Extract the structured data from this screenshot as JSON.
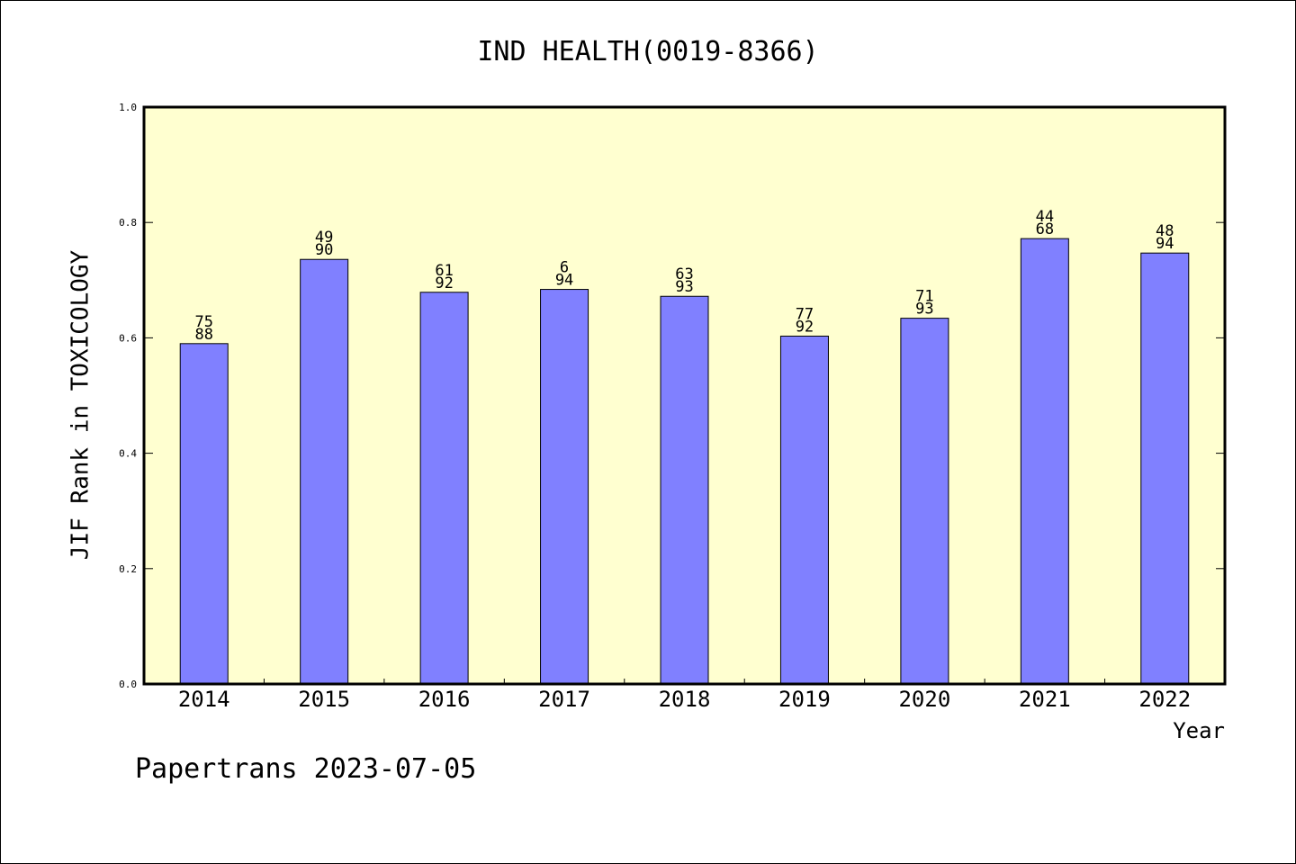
{
  "chart_data": {
    "type": "bar",
    "title": "IND HEALTH(0019-8366)",
    "xlabel": "Year",
    "ylabel": "JIF Rank in TOXICOLOGY",
    "ylim": [
      0,
      1.0
    ],
    "yticks": [
      "0.0",
      "0.2",
      "0.4",
      "0.6",
      "0.8",
      "1.0"
    ],
    "categories": [
      "2014",
      "2015",
      "2016",
      "2017",
      "2018",
      "2019",
      "2020",
      "2021",
      "2022"
    ],
    "values": [
      0.59,
      0.736,
      0.679,
      0.684,
      0.672,
      0.603,
      0.634,
      0.772,
      0.747
    ],
    "annotations": [
      {
        "rank": "75",
        "total": "88"
      },
      {
        "rank": "49",
        "total": "90"
      },
      {
        "rank": "61",
        "total": "92"
      },
      {
        "rank": "6",
        "total": "94"
      },
      {
        "rank": "63",
        "total": "93"
      },
      {
        "rank": "77",
        "total": "92"
      },
      {
        "rank": "71",
        "total": "93"
      },
      {
        "rank": "44",
        "total": "68"
      },
      {
        "rank": "48",
        "total": "94"
      }
    ],
    "grid": false,
    "colors": {
      "bar_fill": "#8080ff",
      "plot_background": "#ffffd0",
      "axis": "#000000"
    }
  },
  "footer": "Papertrans 2023-07-05"
}
